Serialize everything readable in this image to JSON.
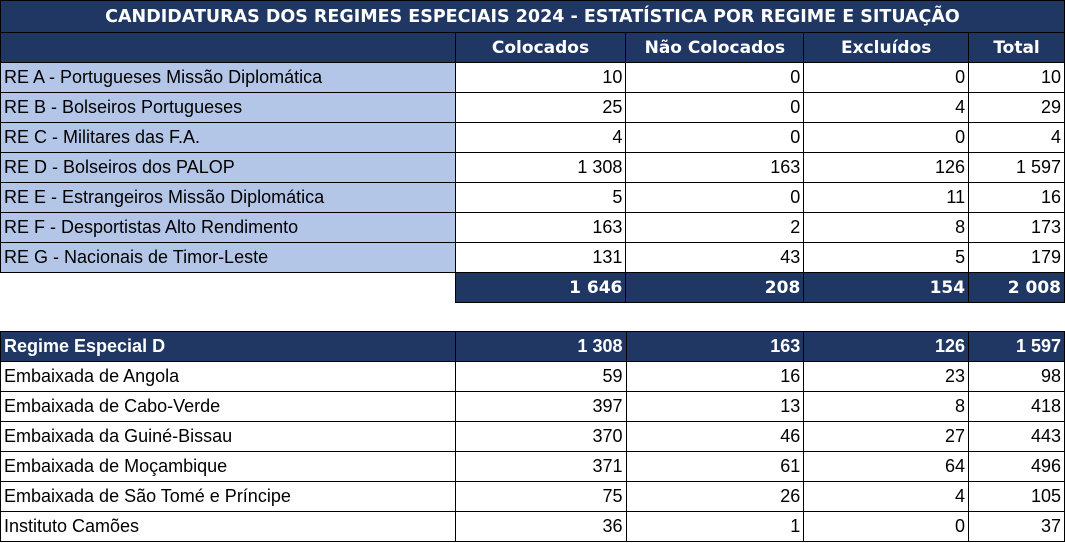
{
  "title": "CANDIDATURAS DOS REGIMES ESPECIAIS 2024 - ESTATÍSTICA POR REGIME E SITUAÇÃO",
  "columns": [
    "Colocados",
    "Não Colocados",
    "Excluídos",
    "Total"
  ],
  "regimes": [
    {
      "label": "RE A - Portugueses Missão Diplomática",
      "values": [
        "10",
        "0",
        "0",
        "10"
      ]
    },
    {
      "label": "RE B - Bolseiros Portugueses",
      "values": [
        "25",
        "0",
        "4",
        "29"
      ]
    },
    {
      "label": "RE C - Militares das F.A.",
      "values": [
        "4",
        "0",
        "0",
        "4"
      ]
    },
    {
      "label": "RE D - Bolseiros dos PALOP",
      "values": [
        "1 308",
        "163",
        "126",
        "1 597"
      ]
    },
    {
      "label": "RE E - Estrangeiros Missão Diplomática",
      "values": [
        "5",
        "0",
        "11",
        "16"
      ]
    },
    {
      "label": "RE F - Desportistas Alto Rendimento",
      "values": [
        "163",
        "2",
        "8",
        "173"
      ]
    },
    {
      "label": "RE G - Nacionais de Timor-Leste",
      "values": [
        "131",
        "43",
        "5",
        "179"
      ]
    }
  ],
  "totals": [
    "1 646",
    "208",
    "154",
    "2 008"
  ],
  "regime_d": {
    "label": "Regime Especial D",
    "values": [
      "1 308",
      "163",
      "126",
      "1 597"
    ],
    "rows": [
      {
        "label": "Embaixada de Angola",
        "values": [
          "59",
          "16",
          "23",
          "98"
        ]
      },
      {
        "label": "Embaixada de Cabo-Verde",
        "values": [
          "397",
          "13",
          "8",
          "418"
        ]
      },
      {
        "label": "Embaixada da Guiné-Bissau",
        "values": [
          "370",
          "46",
          "27",
          "443"
        ]
      },
      {
        "label": "Embaixada de Moçambique",
        "values": [
          "371",
          "61",
          "64",
          "496"
        ]
      },
      {
        "label": "Embaixada de São Tomé e Príncipe",
        "values": [
          "75",
          "26",
          "4",
          "105"
        ]
      },
      {
        "label": "Instituto Camões",
        "values": [
          "36",
          "1",
          "0",
          "37"
        ]
      }
    ]
  },
  "colors": {
    "header_bg": "#203764",
    "label_bg": "#b4c6e7"
  }
}
